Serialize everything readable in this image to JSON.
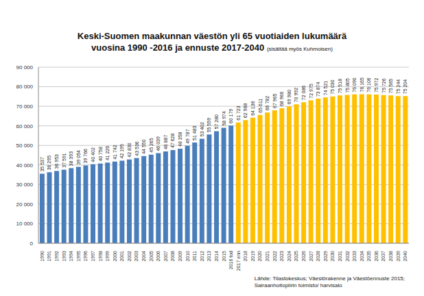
{
  "chart_data": {
    "type": "bar",
    "title": "Keski-Suomen maakunnan väestön yli 65 vuotiaiden lukumäärä",
    "subtitle": "vuosina 1990 -2016 ja ennuste 2017-2040",
    "annotations": [
      "(sisältää myös Kuhmoisen)"
    ],
    "source": [
      "Lähde: Tilastokeskus; Väestörakenne ja Väestöennuste 2015;",
      "Sairaanhoitopiirin toimisto/ harvisalo"
    ],
    "categories": [
      "1990",
      "1991",
      "1992",
      "1993",
      "1994",
      "1995",
      "1996",
      "1997",
      "1998",
      "1999",
      "2000",
      "2001",
      "2002",
      "2003",
      "2004",
      "2005",
      "2006",
      "2007",
      "2008",
      "2009",
      "2010",
      "2011",
      "2012",
      "2013",
      "2014",
      "2015",
      "2016 tod",
      "2017 enn",
      "2018",
      "2019",
      "2020",
      "2021",
      "2022",
      "2023",
      "2024",
      "2025",
      "2026",
      "2027",
      "2028",
      "2029",
      "2030",
      "2031",
      "2032",
      "2033",
      "2034",
      "2035",
      "2036",
      "2037",
      "2038",
      "2039",
      "2040"
    ],
    "values": [
      35537,
      36295,
      36953,
      37591,
      38393,
      39054,
      39766,
      40402,
      40758,
      41226,
      41742,
      42195,
      42830,
      43536,
      44550,
      45265,
      46039,
      46887,
      47628,
      48358,
      49787,
      51483,
      53402,
      55559,
      57280,
      58974,
      60179,
      61723,
      62988,
      64136,
      65611,
      66782,
      67965,
      68966,
      69980,
      70992,
      72086,
      72975,
      73874,
      74521,
      75030,
      75518,
      75805,
      76090,
      76165,
      76106,
      75972,
      75726,
      75565,
      75244,
      75204
    ],
    "value_labels": [
      "35 537",
      "36 295",
      "36 953",
      "37 591",
      "38 393",
      "39 054",
      "39 766",
      "40 402",
      "40 758",
      "41 226",
      "41 742",
      "42 195",
      "42 830",
      "43 536",
      "44 550",
      "45 265",
      "46 039",
      "46 887",
      "47 628",
      "48 358",
      "49 787",
      "51 483",
      "53 402",
      "55 559",
      "57 280",
      "58 974",
      "60 179",
      "61 723",
      "62 988",
      "64 136",
      "65 611",
      "66 782",
      "67 965",
      "68 966",
      "69 980",
      "70 992",
      "72 086",
      "72 975",
      "73 874",
      "74 521",
      "75 030",
      "75 518",
      "75 805",
      "76 090",
      "76 165",
      "76 106",
      "75 972",
      "75 726",
      "75 565",
      "75 244",
      "75 204"
    ],
    "colors": [
      "#4a7ebb",
      "#4a7ebb",
      "#4a7ebb",
      "#4a7ebb",
      "#4a7ebb",
      "#4a7ebb",
      "#4a7ebb",
      "#4a7ebb",
      "#4a7ebb",
      "#4a7ebb",
      "#4a7ebb",
      "#4a7ebb",
      "#4a7ebb",
      "#4a7ebb",
      "#4a7ebb",
      "#4a7ebb",
      "#4a7ebb",
      "#4a7ebb",
      "#4a7ebb",
      "#4a7ebb",
      "#4a7ebb",
      "#4a7ebb",
      "#4a7ebb",
      "#4a7ebb",
      "#4a7ebb",
      "#4a7ebb",
      "#4a7ebb",
      "#ffc000",
      "#ffc000",
      "#ffc000",
      "#ffc000",
      "#ffc000",
      "#ffc000",
      "#ffc000",
      "#ffc000",
      "#ffc000",
      "#ffc000",
      "#ffc000",
      "#ffc000",
      "#ffc000",
      "#ffc000",
      "#ffc000",
      "#ffc000",
      "#ffc000",
      "#ffc000",
      "#ffc000",
      "#ffc000",
      "#ffc000",
      "#ffc000",
      "#ffc000",
      "#ffc000"
    ],
    "ylim": [
      0,
      90000
    ],
    "yticks": [
      {
        "value": 0,
        "label": "0"
      },
      {
        "value": 10000,
        "label": "10 000"
      },
      {
        "value": 20000,
        "label": "20 000"
      },
      {
        "value": 30000,
        "label": "30 000"
      },
      {
        "value": 40000,
        "label": "40 000"
      },
      {
        "value": 50000,
        "label": "50 000"
      },
      {
        "value": 60000,
        "label": "60 000"
      },
      {
        "value": 70000,
        "label": "70 000"
      },
      {
        "value": 80000,
        "label": "80 000"
      },
      {
        "value": 90000,
        "label": "90 000"
      }
    ],
    "grid": true,
    "data_labels": true
  }
}
